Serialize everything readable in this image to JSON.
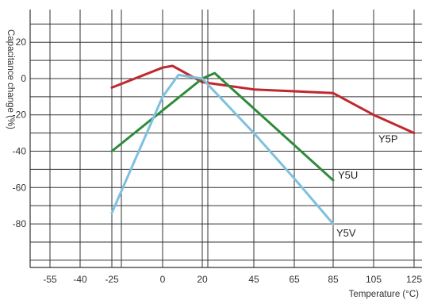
{
  "chart_data": {
    "type": "line",
    "xlabel": "Temperature (°C)",
    "ylabel": "Capacitance change (%)",
    "x_tick_labels": [
      "-55",
      "-40",
      "-25",
      "0",
      "20",
      "45",
      "65",
      "85",
      "105",
      "125"
    ],
    "y_tick_labels": [
      "20",
      "0",
      "-20",
      "-40",
      "-60",
      "-80"
    ],
    "y_ticks": [
      20,
      0,
      -20,
      -40,
      -60,
      -80
    ],
    "ylim": [
      -104,
      38
    ],
    "x_axis_note": "non-linear: tick labels are evenly spaced",
    "grid": true,
    "series": [
      {
        "name": "Y5P",
        "color": "#c0282e",
        "x": [
          -25,
          0,
          5,
          20,
          45,
          65,
          85,
          105,
          125
        ],
        "y": [
          -5,
          6,
          7,
          -2,
          -6,
          -7,
          -8,
          -20,
          -30
        ]
      },
      {
        "name": "Y5U",
        "color": "#2e8b3a",
        "x": [
          -25,
          20,
          26,
          85
        ],
        "y": [
          -40,
          0,
          3,
          -56
        ]
      },
      {
        "name": "Y5V",
        "color": "#7ec1de",
        "x": [
          -25,
          0,
          8,
          20,
          45,
          65,
          85
        ],
        "y": [
          -74,
          -10,
          2,
          0,
          -30,
          -55,
          -80
        ]
      }
    ]
  }
}
